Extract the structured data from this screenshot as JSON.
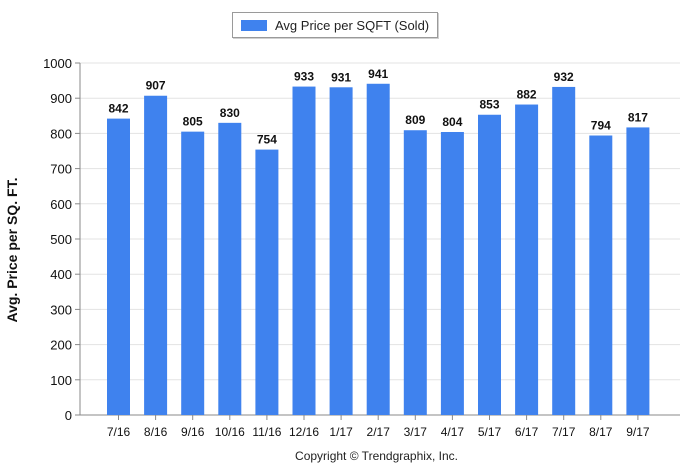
{
  "legend": {
    "label": "Avg Price per SQFT (Sold)",
    "color": "#3f82ee"
  },
  "copyright": "Copyright © Trendgraphix, Inc.",
  "chart_data": {
    "type": "bar",
    "title": "",
    "xlabel": "",
    "ylabel": "Avg. Price per SQ. FT.",
    "ylim": [
      0,
      1000
    ],
    "yticks": [
      0,
      100,
      200,
      300,
      400,
      500,
      600,
      700,
      800,
      900,
      1000
    ],
    "grid": true,
    "legend_position": "top",
    "categories": [
      "7/16",
      "8/16",
      "9/16",
      "10/16",
      "11/16",
      "12/16",
      "1/17",
      "2/17",
      "3/17",
      "4/17",
      "5/17",
      "6/17",
      "7/17",
      "8/17",
      "9/17"
    ],
    "series": [
      {
        "name": "Avg Price per SQFT (Sold)",
        "values": [
          842,
          907,
          805,
          830,
          754,
          933,
          931,
          941,
          809,
          804,
          853,
          882,
          932,
          794,
          817
        ],
        "color": "#3f82ee"
      }
    ]
  }
}
